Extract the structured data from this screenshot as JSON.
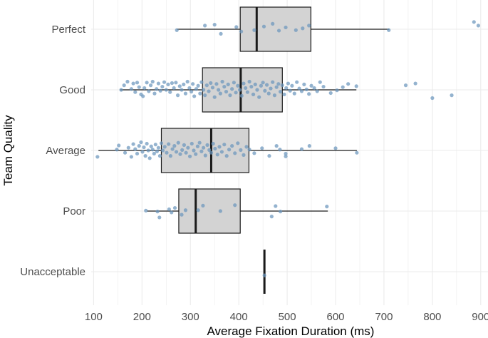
{
  "chart_data": {
    "type": "box",
    "orientation": "horizontal",
    "title": "",
    "xlabel": "Average Fixation Duration (ms)",
    "ylabel": "Team Quality",
    "xlim": [
      95,
      915
    ],
    "xticks": [
      100,
      200,
      300,
      400,
      500,
      600,
      700,
      800,
      900
    ],
    "grid": true,
    "legend": "none",
    "colors": {
      "box_fill": "#d3d3d3",
      "box_stroke": "#1a1a1a",
      "points": "#6b95bd",
      "grid": "#ebebeb"
    },
    "categories": [
      "Perfect",
      "Good",
      "Average",
      "Poor",
      "Unacceptable"
    ],
    "boxes": [
      {
        "category": "Perfect",
        "whisker_low": 272,
        "q1": 403,
        "median": 437,
        "q3": 549,
        "whisker_high": 711,
        "points": [
          [
            272,
            -0.02
          ],
          [
            330,
            0.08
          ],
          [
            350,
            0.1
          ],
          [
            363,
            -0.1
          ],
          [
            395,
            0.05
          ],
          [
            405,
            -0.05
          ],
          [
            432,
            -0.02
          ],
          [
            452,
            0.06
          ],
          [
            470,
            0.12
          ],
          [
            483,
            -0.03
          ],
          [
            497,
            0.04
          ],
          [
            518,
            -0.02
          ],
          [
            532,
            0.02
          ],
          [
            545,
            0.08
          ],
          [
            710,
            -0.02
          ],
          [
            886,
            0.16
          ],
          [
            895,
            0.08
          ]
        ]
      },
      {
        "category": "Good",
        "whisker_low": 155,
        "q1": 325,
        "median": 404,
        "q3": 490,
        "whisker_high": 643,
        "points": [
          [
            157,
            0.0
          ],
          [
            163,
            0.1
          ],
          [
            170,
            0.18
          ],
          [
            178,
            0.02
          ],
          [
            182,
            0.14
          ],
          [
            186,
            -0.05
          ],
          [
            190,
            0.16
          ],
          [
            194,
            0.06
          ],
          [
            198,
            -0.1
          ],
          [
            202,
            -0.14
          ],
          [
            205,
            0.04
          ],
          [
            210,
            0.16
          ],
          [
            214,
            -0.03
          ],
          [
            218,
            0.1
          ],
          [
            222,
            0.18
          ],
          [
            226,
            -0.08
          ],
          [
            230,
            0.02
          ],
          [
            234,
            0.14
          ],
          [
            238,
            -0.02
          ],
          [
            242,
            0.07
          ],
          [
            246,
            0.17
          ],
          [
            250,
            0.0
          ],
          [
            254,
            0.12
          ],
          [
            258,
            -0.05
          ],
          [
            262,
            0.15
          ],
          [
            266,
            0.04
          ],
          [
            270,
            0.16
          ],
          [
            274,
            -0.12
          ],
          [
            278,
            0.08
          ],
          [
            282,
            0.0
          ],
          [
            286,
            0.12
          ],
          [
            290,
            -0.08
          ],
          [
            294,
            0.18
          ],
          [
            298,
            0.04
          ],
          [
            302,
            -0.04
          ],
          [
            305,
            0.13
          ],
          [
            308,
            -0.14
          ],
          [
            312,
            0.02
          ],
          [
            316,
            0.09
          ],
          [
            320,
            -0.08
          ],
          [
            323,
            0.17
          ],
          [
            327,
            0.0
          ],
          [
            330,
            -0.12
          ],
          [
            334,
            0.1
          ],
          [
            338,
            -0.03
          ],
          [
            342,
            0.15
          ],
          [
            346,
            0.05
          ],
          [
            350,
            -0.16
          ],
          [
            354,
            0.13
          ],
          [
            358,
            0.0
          ],
          [
            362,
            -0.08
          ],
          [
            366,
            0.18
          ],
          [
            370,
            0.07
          ],
          [
            374,
            -0.04
          ],
          [
            378,
            0.12
          ],
          [
            382,
            -0.12
          ],
          [
            386,
            0.02
          ],
          [
            390,
            0.16
          ],
          [
            394,
            -0.06
          ],
          [
            398,
            0.09
          ],
          [
            402,
            0.0
          ],
          [
            406,
            -0.13
          ],
          [
            410,
            0.14
          ],
          [
            414,
            0.04
          ],
          [
            418,
            -0.05
          ],
          [
            422,
            0.18
          ],
          [
            426,
            0.07
          ],
          [
            430,
            -0.1
          ],
          [
            434,
            0.12
          ],
          [
            438,
            0.0
          ],
          [
            442,
            -0.16
          ],
          [
            446,
            0.09
          ],
          [
            450,
            0.16
          ],
          [
            454,
            -0.02
          ],
          [
            458,
            0.11
          ],
          [
            462,
            -0.08
          ],
          [
            466,
            0.03
          ],
          [
            470,
            0.17
          ],
          [
            474,
            -0.12
          ],
          [
            478,
            0.06
          ],
          [
            482,
            0.13
          ],
          [
            486,
            -0.04
          ],
          [
            490,
            0.1
          ],
          [
            494,
            -0.1
          ],
          [
            498,
            0.04
          ],
          [
            502,
            0.14
          ],
          [
            506,
            -0.02
          ],
          [
            510,
            0.09
          ],
          [
            515,
            -0.08
          ],
          [
            520,
            0.17
          ],
          [
            525,
            0.03
          ],
          [
            530,
            -0.03
          ],
          [
            535,
            0.12
          ],
          [
            540,
            0.01
          ],
          [
            545,
            -0.09
          ],
          [
            550,
            0.09
          ],
          [
            556,
            0.04
          ],
          [
            562,
            -0.03
          ],
          [
            568,
            0.17
          ],
          [
            575,
            0.07
          ],
          [
            590,
            -0.07
          ],
          [
            603,
            -0.01
          ],
          [
            615,
            0.06
          ],
          [
            626,
            0.13
          ],
          [
            643,
            0.08
          ],
          [
            745,
            0.1
          ],
          [
            765,
            0.14
          ],
          [
            800,
            -0.18
          ],
          [
            840,
            -0.12
          ]
        ]
      },
      {
        "category": "Average",
        "whisker_low": 110,
        "q1": 240,
        "median": 343,
        "q3": 421,
        "whisker_high": 644,
        "points": [
          [
            108,
            -0.14
          ],
          [
            148,
            0.02
          ],
          [
            152,
            0.11
          ],
          [
            165,
            -0.05
          ],
          [
            172,
            0.06
          ],
          [
            178,
            -0.14
          ],
          [
            182,
            0.14
          ],
          [
            186,
            0.03
          ],
          [
            190,
            -0.07
          ],
          [
            194,
            0.1
          ],
          [
            198,
            0.18
          ],
          [
            201,
            -0.03
          ],
          [
            204,
            0.07
          ],
          [
            207,
            -0.12
          ],
          [
            210,
            0.15
          ],
          [
            213,
            0.0
          ],
          [
            216,
            -0.17
          ],
          [
            219,
            0.09
          ],
          [
            222,
            0.02
          ],
          [
            225,
            -0.07
          ],
          [
            228,
            0.13
          ],
          [
            231,
            -0.02
          ],
          [
            234,
            0.06
          ],
          [
            237,
            -0.12
          ],
          [
            240,
            0.16
          ],
          [
            243,
            0.0
          ],
          [
            247,
            0.08
          ],
          [
            251,
            -0.05
          ],
          [
            255,
            0.14
          ],
          [
            259,
            -0.12
          ],
          [
            263,
            0.03
          ],
          [
            267,
            0.1
          ],
          [
            271,
            -0.03
          ],
          [
            275,
            0.17
          ],
          [
            279,
            -0.08
          ],
          [
            283,
            0.01
          ],
          [
            287,
            0.12
          ],
          [
            291,
            -0.05
          ],
          [
            295,
            0.06
          ],
          [
            299,
            -0.13
          ],
          [
            303,
            0.15
          ],
          [
            307,
            0.0
          ],
          [
            311,
            -0.08
          ],
          [
            315,
            0.09
          ],
          [
            319,
            0.17
          ],
          [
            323,
            -0.02
          ],
          [
            327,
            0.06
          ],
          [
            331,
            -0.11
          ],
          [
            335,
            0.12
          ],
          [
            339,
            0.01
          ],
          [
            343,
            -0.05
          ],
          [
            347,
            0.15
          ],
          [
            351,
            0.04
          ],
          [
            356,
            -0.09
          ],
          [
            360,
            0.08
          ],
          [
            365,
            -0.03
          ],
          [
            370,
            0.13
          ],
          [
            375,
            -0.12
          ],
          [
            380,
            0.02
          ],
          [
            386,
            0.1
          ],
          [
            392,
            -0.06
          ],
          [
            398,
            0.16
          ],
          [
            404,
            0.01
          ],
          [
            410,
            -0.1
          ],
          [
            416,
            0.08
          ],
          [
            422,
            0.02
          ],
          [
            432,
            -0.06
          ],
          [
            448,
            0.05
          ],
          [
            463,
            -0.12
          ],
          [
            478,
            0.1
          ],
          [
            485,
            0.02
          ],
          [
            497,
            -0.07
          ],
          [
            497,
            -0.13
          ],
          [
            530,
            0.03
          ],
          [
            546,
            0.1
          ],
          [
            600,
            0.05
          ],
          [
            644,
            -0.05
          ]
        ]
      },
      {
        "category": "Poor",
        "whisker_low": 210,
        "q1": 276,
        "median": 311,
        "q3": 403,
        "whisker_high": 584,
        "points": [
          [
            208,
            0.01
          ],
          [
            232,
            -0.01
          ],
          [
            236,
            -0.14
          ],
          [
            256,
            0.04
          ],
          [
            261,
            -0.03
          ],
          [
            268,
            0.07
          ],
          [
            282,
            -0.08
          ],
          [
            290,
            0.02
          ],
          [
            316,
            0.02
          ],
          [
            326,
            0.12
          ],
          [
            362,
            0.0
          ],
          [
            392,
            0.13
          ],
          [
            476,
            0.11
          ],
          [
            486,
            -0.01
          ],
          [
            468,
            -0.12
          ],
          [
            582,
            0.1
          ]
        ]
      },
      {
        "category": "Unacceptable",
        "whisker_low": 453,
        "q1": 453,
        "median": 453,
        "q3": 453,
        "whisker_high": 453,
        "points": [
          [
            453,
            -0.08
          ]
        ]
      }
    ]
  }
}
